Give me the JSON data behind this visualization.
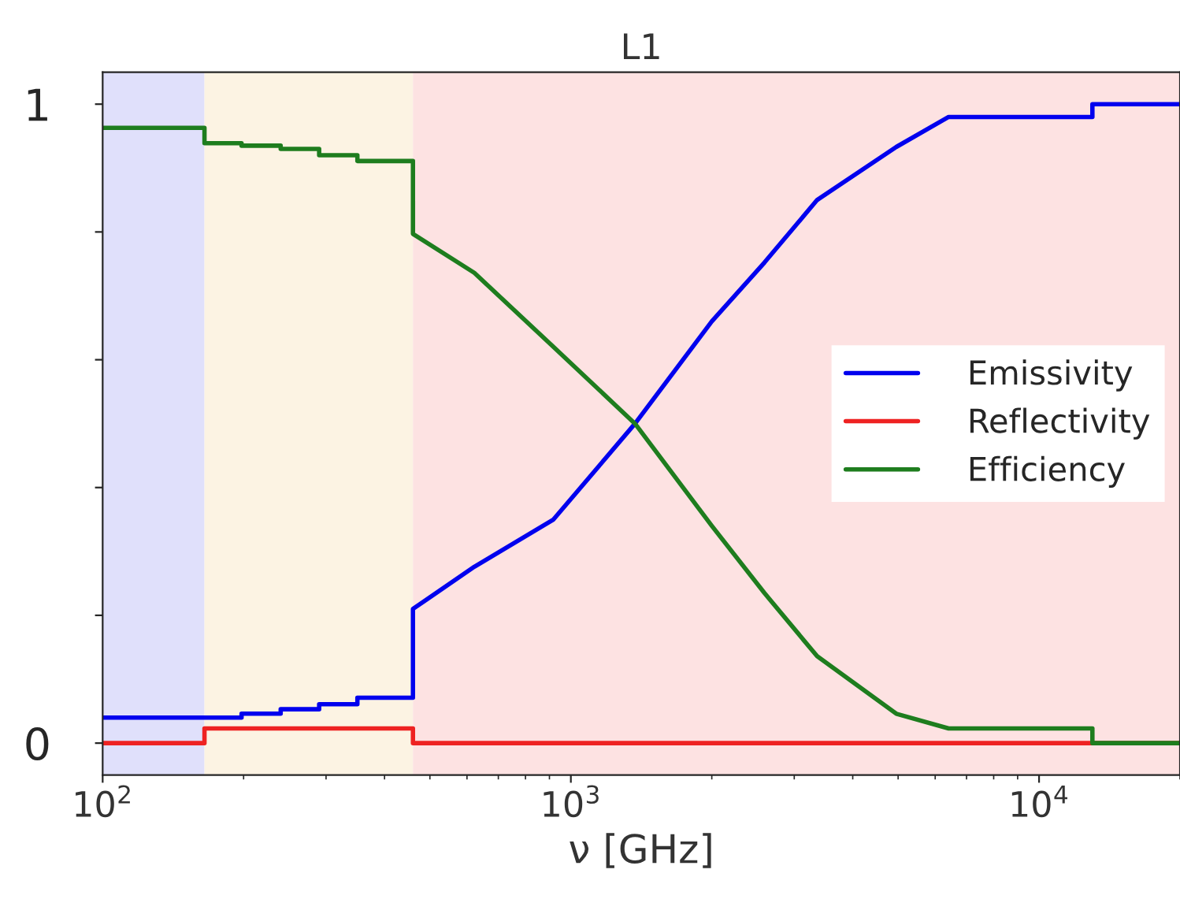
{
  "chart_data": {
    "type": "line",
    "title": "L1",
    "xlabel": "ν [GHz]",
    "log": "x",
    "xlim": [
      100,
      20000
    ],
    "xticks": [
      {
        "value": 100,
        "label": "10$^{2}$"
      },
      {
        "value": 1000,
        "label": "10$^{3}$"
      },
      {
        "value": 10000,
        "label": "10$^{4}$"
      }
    ],
    "ylim": [
      -0.05,
      1.05
    ],
    "yticks": [
      {
        "value": 0,
        "label": "0"
      },
      {
        "value": 0.2,
        "label": null
      },
      {
        "value": 0.4,
        "label": null
      },
      {
        "value": 0.6,
        "label": null
      },
      {
        "value": 0.8,
        "label": null
      },
      {
        "value": 1,
        "label": "1"
      }
    ],
    "grid": false,
    "legend": "right",
    "bands": [
      {
        "axis": "x",
        "from": 100,
        "to": 165,
        "color": "#e0e0fb"
      },
      {
        "axis": "x",
        "from": 165,
        "to": 460,
        "color": "#fcf3e3"
      },
      {
        "axis": "x",
        "from": 460,
        "to": 20000,
        "color": "#fde2e2"
      }
    ],
    "series": [
      {
        "name": "Emissivity",
        "color": "#0000ee",
        "x": [
          100,
          198,
          198,
          240,
          240,
          290,
          290,
          350,
          350,
          460,
          460,
          622,
          918,
          1371,
          2000,
          2590,
          3357,
          4955,
          6410,
          13000,
          13000,
          20000
        ],
        "values": [
          0.04,
          0.04,
          0.046,
          0.046,
          0.053,
          0.053,
          0.061,
          0.061,
          0.071,
          0.071,
          0.21,
          0.276,
          0.35,
          0.5,
          0.66,
          0.752,
          0.85,
          0.933,
          0.98,
          0.98,
          1.0,
          1.0
        ]
      },
      {
        "name": "Reflectivity",
        "color": "#ee2222",
        "x": [
          100,
          165,
          165,
          460,
          460,
          20000
        ],
        "values": [
          0,
          0,
          0.023,
          0.023,
          0,
          0
        ]
      },
      {
        "name": "Efficiency",
        "color": "#1e7d1e",
        "x": [
          100,
          165,
          165,
          198,
          198,
          240,
          240,
          290,
          290,
          350,
          350,
          460,
          460,
          622,
          918,
          1371,
          2000,
          2590,
          3357,
          4955,
          6410,
          13000,
          13000,
          20000
        ],
        "values": [
          0.963,
          0.963,
          0.939,
          0.939,
          0.935,
          0.935,
          0.93,
          0.93,
          0.92,
          0.92,
          0.911,
          0.911,
          0.797,
          0.736,
          0.62,
          0.5,
          0.34,
          0.235,
          0.136,
          0.046,
          0.023,
          0.023,
          0.0,
          0.0
        ]
      }
    ]
  }
}
